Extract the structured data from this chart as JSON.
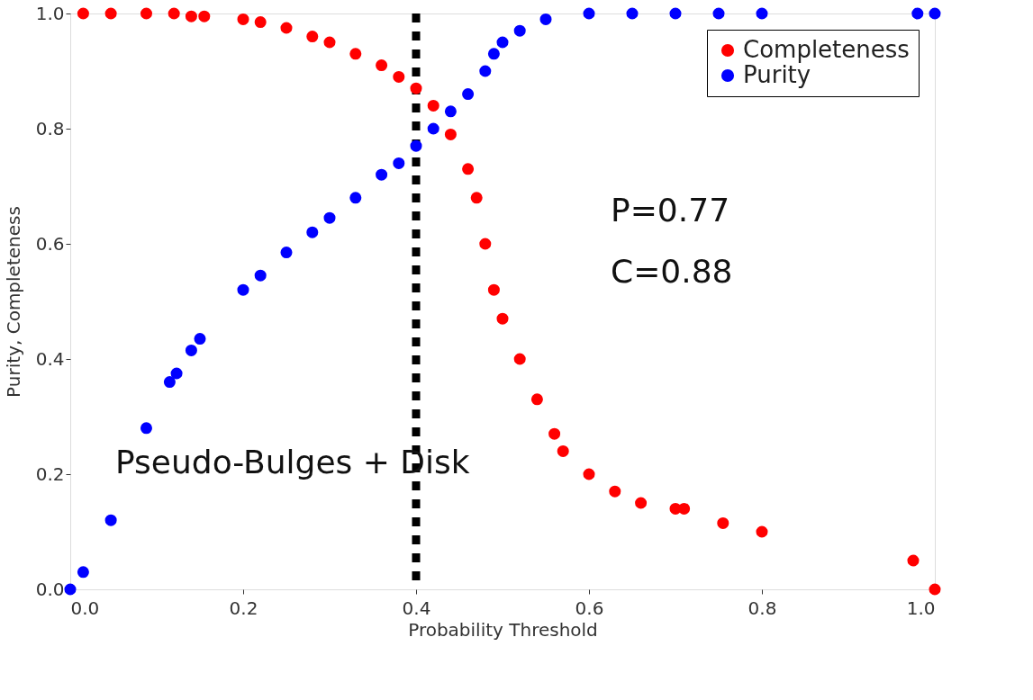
{
  "chart_data": {
    "type": "scatter",
    "xlabel": "Probability Threshold",
    "ylabel": "Purity, Completeness",
    "xlim": [
      0,
      1
    ],
    "ylim": [
      0,
      1
    ],
    "xticks": [
      {
        "value": 0,
        "label": "0.0"
      },
      {
        "value": 0.2,
        "label": "0.2"
      },
      {
        "value": 0.4,
        "label": "0.4"
      },
      {
        "value": 0.6,
        "label": "0.6"
      },
      {
        "value": 0.8,
        "label": "0.8"
      },
      {
        "value": 1,
        "label": "1.0"
      }
    ],
    "yticks": [
      {
        "value": 0,
        "label": "0.0"
      },
      {
        "value": 0.2,
        "label": "0.2"
      },
      {
        "value": 0.4,
        "label": "0.4"
      },
      {
        "value": 0.6,
        "label": "0.6"
      },
      {
        "value": 0.8,
        "label": "0.8"
      },
      {
        "value": 1,
        "label": "1.0"
      }
    ],
    "grid": false,
    "legend": "top right",
    "marker": "circle",
    "series": [
      {
        "name": "Completeness",
        "color": "#ff0000",
        "x": [
          0.015,
          0.047,
          0.088,
          0.12,
          0.14,
          0.155,
          0.2,
          0.22,
          0.25,
          0.28,
          0.3,
          0.33,
          0.36,
          0.38,
          0.4,
          0.42,
          0.44,
          0.46,
          0.47,
          0.48,
          0.49,
          0.5,
          0.52,
          0.54,
          0.56,
          0.57,
          0.6,
          0.63,
          0.66,
          0.7,
          0.71,
          0.755,
          0.8,
          0.975,
          1.0
        ],
        "values": [
          1.0,
          1.0,
          1.0,
          1.0,
          0.995,
          0.995,
          0.99,
          0.985,
          0.975,
          0.96,
          0.95,
          0.93,
          0.91,
          0.89,
          0.87,
          0.84,
          0.79,
          0.73,
          0.68,
          0.6,
          0.52,
          0.47,
          0.4,
          0.33,
          0.27,
          0.24,
          0.2,
          0.17,
          0.15,
          0.14,
          0.14,
          0.115,
          0.1,
          0.05,
          0.0
        ]
      },
      {
        "name": "Purity",
        "color": "#0000ff",
        "x": [
          0.0,
          0.015,
          0.047,
          0.088,
          0.115,
          0.123,
          0.14,
          0.15,
          0.2,
          0.22,
          0.25,
          0.28,
          0.3,
          0.33,
          0.36,
          0.38,
          0.4,
          0.42,
          0.44,
          0.46,
          0.48,
          0.49,
          0.5,
          0.52,
          0.55,
          0.6,
          0.65,
          0.7,
          0.75,
          0.8,
          0.98,
          1.0
        ],
        "values": [
          0.0,
          0.03,
          0.12,
          0.28,
          0.36,
          0.375,
          0.415,
          0.435,
          0.52,
          0.545,
          0.585,
          0.62,
          0.645,
          0.68,
          0.72,
          0.74,
          0.77,
          0.8,
          0.83,
          0.86,
          0.9,
          0.93,
          0.95,
          0.97,
          0.99,
          1.0,
          1.0,
          1.0,
          1.0,
          1.0,
          1.0,
          1.0
        ]
      }
    ],
    "ref_lines": [
      {
        "axis": "x",
        "value": 0.4,
        "color": "#000000",
        "line_style": "dotted"
      }
    ],
    "annotations": [
      "P=0.77",
      "C=0.88",
      "Pseudo-Bulges + Disk"
    ]
  }
}
